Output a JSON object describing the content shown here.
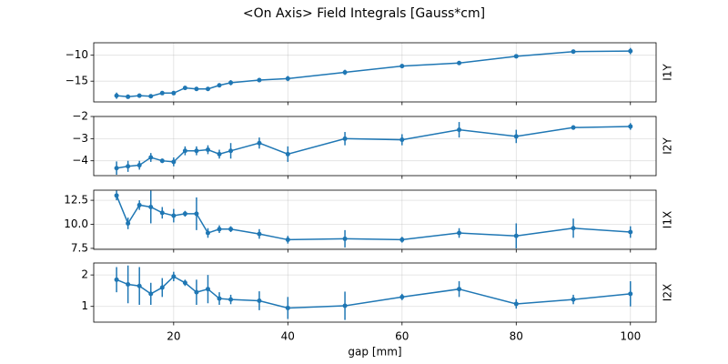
{
  "title": "<On Axis> Field Integrals [Gauss*cm]",
  "chart_data": [
    {
      "type": "line",
      "ylabel": "I1Y",
      "color": "#1f77b4",
      "grid": true,
      "x": [
        10,
        12,
        14,
        16,
        18,
        20,
        22,
        24,
        26,
        28,
        30,
        35,
        40,
        50,
        60,
        70,
        80,
        90,
        100
      ],
      "values": [
        -17.8,
        -18.0,
        -17.8,
        -17.9,
        -17.3,
        -17.3,
        -16.3,
        -16.5,
        -16.5,
        -15.8,
        -15.3,
        -14.8,
        -14.5,
        -13.3,
        -12.1,
        -11.5,
        -10.2,
        -9.3,
        -9.2
      ],
      "errors": [
        0.6,
        0.4,
        0.4,
        0.3,
        0.3,
        0.4,
        0.3,
        0.3,
        0.3,
        0.4,
        0.5,
        0.3,
        0.5,
        0.5,
        0.3,
        0.3,
        0.4,
        0.4,
        0.6
      ],
      "xlim": [
        6,
        104.5
      ],
      "xticks": [
        20,
        40,
        60,
        80,
        100
      ],
      "ylim": [
        -19,
        -7.6
      ],
      "yticks": [
        -15,
        -10
      ]
    },
    {
      "type": "line",
      "ylabel": "I2Y",
      "color": "#1f77b4",
      "grid": true,
      "x": [
        10,
        12,
        14,
        16,
        18,
        20,
        22,
        24,
        26,
        28,
        30,
        35,
        40,
        50,
        60,
        70,
        80,
        90,
        100
      ],
      "values": [
        -4.33,
        -4.25,
        -4.2,
        -3.85,
        -4.0,
        -4.05,
        -3.55,
        -3.55,
        -3.5,
        -3.7,
        -3.55,
        -3.2,
        -3.7,
        -3.0,
        -3.05,
        -2.6,
        -2.9,
        -2.5,
        -2.45
      ],
      "errors": [
        0.3,
        0.25,
        0.2,
        0.2,
        0.1,
        0.2,
        0.2,
        0.2,
        0.2,
        0.2,
        0.35,
        0.25,
        0.35,
        0.3,
        0.25,
        0.35,
        0.3,
        0.1,
        0.15
      ],
      "xlim": [
        6,
        104.5
      ],
      "xticks": [
        20,
        40,
        60,
        80,
        100
      ],
      "ylim": [
        -4.67,
        -2
      ],
      "yticks": [
        -4,
        -3,
        -2
      ]
    },
    {
      "type": "line",
      "ylabel": "I1X",
      "color": "#1f77b4",
      "grid": true,
      "x": [
        10,
        12,
        14,
        16,
        18,
        20,
        22,
        24,
        26,
        28,
        30,
        35,
        40,
        50,
        60,
        70,
        80,
        90,
        100
      ],
      "values": [
        13.0,
        10.1,
        12.0,
        11.8,
        11.2,
        10.9,
        11.1,
        11.1,
        9.1,
        9.5,
        9.5,
        9.0,
        8.4,
        8.5,
        8.4,
        9.1,
        8.8,
        9.6,
        9.2
      ],
      "errors": [
        0.5,
        0.6,
        0.5,
        1.7,
        0.6,
        0.7,
        0.3,
        1.7,
        0.5,
        0.4,
        0.3,
        0.5,
        0.4,
        0.9,
        0.3,
        0.5,
        1.3,
        1.0,
        0.6
      ],
      "xlim": [
        6,
        104.5
      ],
      "xticks": [
        20,
        40,
        60,
        80,
        100
      ],
      "ylim": [
        7.4,
        13.55
      ],
      "yticks": [
        7.5,
        {
          "value": 10,
          "label": "10.0"
        },
        12.5
      ]
    },
    {
      "type": "line",
      "ylabel": "I2X",
      "xlabel": "gap [mm]",
      "color": "#1f77b4",
      "grid": true,
      "x": [
        10,
        12,
        14,
        16,
        18,
        20,
        22,
        24,
        26,
        28,
        30,
        35,
        40,
        50,
        60,
        70,
        80,
        90,
        100
      ],
      "values": [
        1.85,
        1.7,
        1.65,
        1.4,
        1.6,
        1.95,
        1.75,
        1.45,
        1.55,
        1.25,
        1.22,
        1.18,
        0.95,
        1.02,
        1.3,
        1.55,
        1.08,
        1.22,
        1.4
      ],
      "errors": [
        0.4,
        0.6,
        0.6,
        0.35,
        0.3,
        0.15,
        0.1,
        0.4,
        0.45,
        0.2,
        0.15,
        0.3,
        0.35,
        0.45,
        0.1,
        0.25,
        0.15,
        0.15,
        0.4
      ],
      "xlim": [
        6,
        104.5
      ],
      "xticks": [
        20,
        40,
        60,
        80,
        100
      ],
      "ylim": [
        0.5,
        2.38
      ],
      "yticks": [
        1,
        2
      ]
    }
  ]
}
